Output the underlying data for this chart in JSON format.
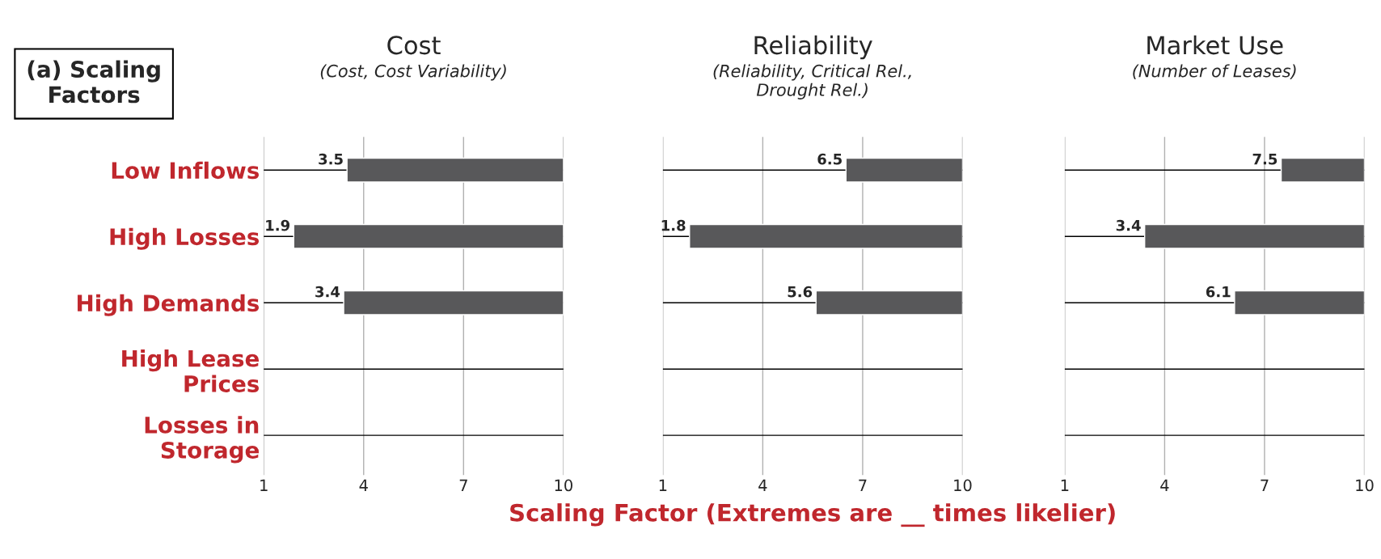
{
  "chart_data": [
    {
      "type": "bar",
      "orientation": "horizontal",
      "title": "Cost",
      "subtitle": "(Cost, Cost Variability)",
      "annotations": [
        "(a) Scaling\nFactors",
        {
          "text": "3.5",
          "x": 3.5
        },
        {
          "text": "1.9",
          "x": 1.9
        },
        {
          "text": "3.4",
          "x": 3.4
        }
      ],
      "categories": [
        "Low Inflows",
        "High Losses",
        "High Demands",
        "High Lease\nPrices",
        "Losses in\nStorage"
      ],
      "base": [
        3.5,
        1.9,
        3.4,
        null,
        null
      ],
      "values": [
        6.5,
        8.1,
        6.6,
        null,
        null
      ],
      "color": "#58585a",
      "xlim": [
        1,
        10
      ],
      "xticks": [
        1,
        4,
        7,
        10
      ],
      "grid": true
    },
    {
      "type": "bar",
      "orientation": "horizontal",
      "title": "Reliability",
      "subtitle": "(Reliability, Critical Rel.,\nDrought Rel.)",
      "xlabel": "Scaling Factor (Extremes are __ times likelier)",
      "annotations": [
        {
          "text": "6.5",
          "x": 6.5
        },
        {
          "text": "1.8",
          "x": 1.8
        },
        {
          "text": "5.6",
          "x": 5.6
        }
      ],
      "categories": [
        null,
        null,
        null,
        null,
        null
      ],
      "base": [
        6.5,
        1.8,
        5.6,
        null,
        null
      ],
      "values": [
        3.5,
        8.2,
        4.4,
        null,
        null
      ],
      "color": "#58585a",
      "xlim": [
        1,
        10
      ],
      "xticks": [
        1,
        4,
        7,
        10
      ],
      "grid": true
    },
    {
      "type": "bar",
      "orientation": "horizontal",
      "title": "Market Use",
      "subtitle": "(Number of Leases)",
      "annotations": [
        {
          "text": "7.5",
          "x": 7.5
        },
        {
          "text": "3.4",
          "x": 3.4
        },
        {
          "text": "6.1",
          "x": 6.1
        }
      ],
      "categories": [
        null,
        null,
        null,
        null,
        null
      ],
      "base": [
        7.5,
        3.4,
        6.1,
        null,
        null
      ],
      "values": [
        2.5,
        6.6,
        3.9,
        null,
        null
      ],
      "color": "#58585a",
      "xlim": [
        1,
        10
      ],
      "xticks": [
        1,
        4,
        7,
        10
      ],
      "grid": true
    }
  ]
}
